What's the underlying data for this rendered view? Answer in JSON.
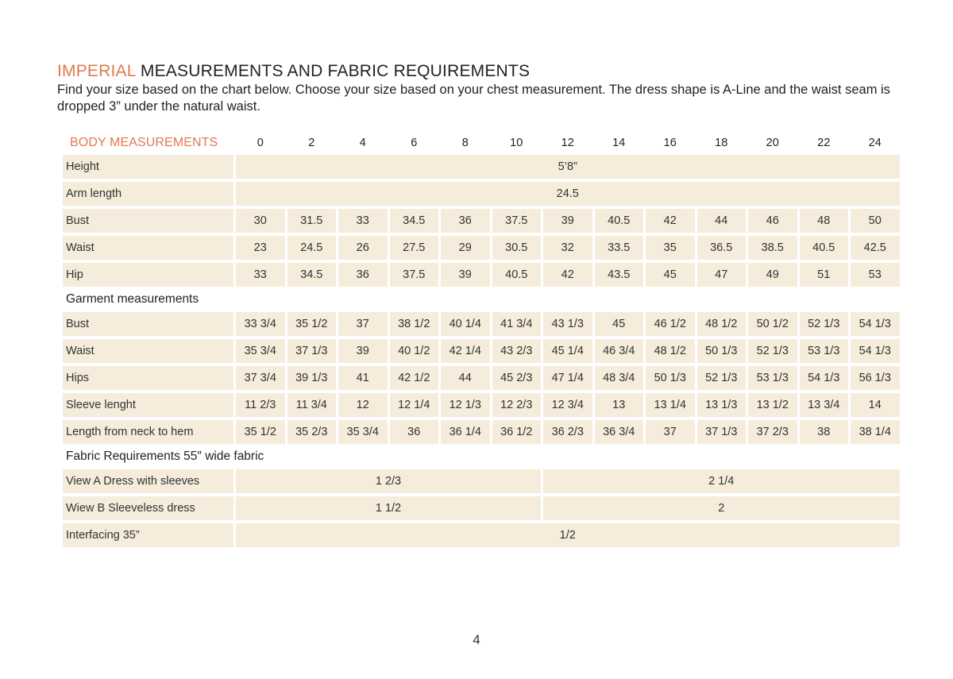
{
  "title": {
    "accent": "IMPERIAL",
    "rest": " MEASUREMENTS AND FABRIC REQUIREMENTS"
  },
  "intro": "Find your size based on the chart below. Choose your size based on your chest measurement. The dress shape is A-Line and the waist seam is dropped 3” under the natural waist.",
  "table": {
    "header_label": "BODY MEASUREMENTS",
    "sizes": [
      "0",
      "2",
      "4",
      "6",
      "8",
      "10",
      "12",
      "14",
      "16",
      "18",
      "20",
      "22",
      "24"
    ],
    "body_rows": [
      {
        "label": "Height",
        "span_value": "5’8”"
      },
      {
        "label": "Arm length",
        "span_value": "24.5"
      },
      {
        "label": "Bust",
        "values": [
          "30",
          "31.5",
          "33",
          "34.5",
          "36",
          "37.5",
          "39",
          "40.5",
          "42",
          "44",
          "46",
          "48",
          "50"
        ]
      },
      {
        "label": "Waist",
        "values": [
          "23",
          "24.5",
          "26",
          "27.5",
          "29",
          "30.5",
          "32",
          "33.5",
          "35",
          "36.5",
          "38.5",
          "40.5",
          "42.5"
        ]
      },
      {
        "label": "Hip",
        "values": [
          "33",
          "34.5",
          "36",
          "37.5",
          "39",
          "40.5",
          "42",
          "43.5",
          "45",
          "47",
          "49",
          "51",
          "53"
        ]
      }
    ],
    "garment_title": "Garment measurements",
    "garment_rows": [
      {
        "label": "Bust",
        "values": [
          "33 3/4",
          "35 1/2",
          "37",
          "38 1/2",
          "40 1/4",
          "41 3/4",
          "43 1/3",
          "45",
          "46 1/2",
          "48 1/2",
          "50 1/2",
          "52 1/3",
          "54 1/3"
        ]
      },
      {
        "label": "Waist",
        "values": [
          "35 3/4",
          "37 1/3",
          "39",
          "40 1/2",
          "42 1/4",
          "43 2/3",
          "45 1/4",
          "46 3/4",
          "48 1/2",
          "50 1/3",
          "52 1/3",
          "53 1/3",
          "54 1/3"
        ]
      },
      {
        "label": "Hips",
        "values": [
          "37 3/4",
          "39 1/3",
          "41",
          "42 1/2",
          "44",
          "45 2/3",
          "47 1/4",
          "48 3/4",
          "50 1/3",
          "52 1/3",
          "53 1/3",
          "54 1/3",
          "56 1/3"
        ]
      },
      {
        "label": "Sleeve lenght",
        "values": [
          "11 2/3",
          "11 3/4",
          "12",
          "12 1/4",
          "12 1/3",
          "12 2/3",
          "12 3/4",
          "13",
          "13 1/4",
          "13 1/3",
          "13 1/2",
          "13 3/4",
          "14"
        ]
      },
      {
        "label": "Length from neck to hem",
        "values": [
          "35 1/2",
          "35 2/3",
          "35 3/4",
          "36",
          "36 1/4",
          "36 1/2",
          "36 2/3",
          "36 3/4",
          "37",
          "37 1/3",
          "37 2/3",
          "38",
          "38 1/4"
        ]
      }
    ],
    "fabric_title": "Fabric Requirements 55″ wide fabric",
    "fabric_rows": [
      {
        "label": "View A Dress with sleeves",
        "left": "1 2/3",
        "right": "2 1/4"
      },
      {
        "label": "Wiew B Sleeveless dress",
        "left": "1 1/2",
        "right": "2"
      },
      {
        "label": "Interfacing 35”",
        "span_value": "1/2"
      }
    ]
  },
  "page_number": "4",
  "colors": {
    "accent": "#e07a4f",
    "cell_fill": "#f5ecdb"
  }
}
